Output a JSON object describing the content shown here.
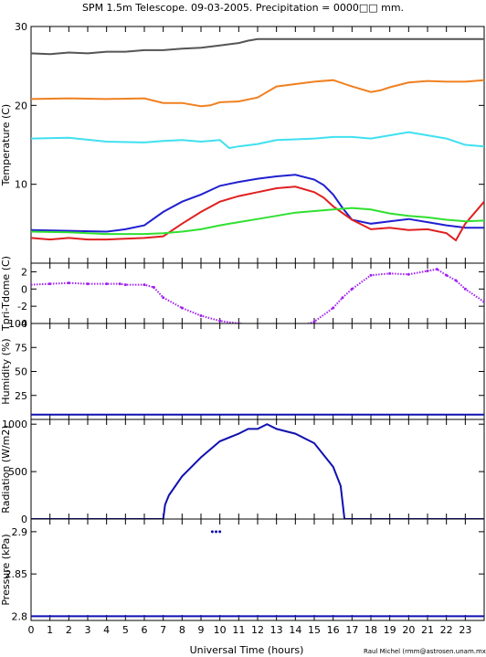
{
  "title": "SPM 1.5m Telescope. 09-03-2005. Precipitation = 0000□□ mm.",
  "xlabel": "Universal Time (hours)",
  "credit": "Raul Michel (rmm@astrosen.unam.mx)",
  "x_ticks": [
    "0",
    "1",
    "2",
    "3",
    "4",
    "5",
    "6",
    "7",
    "8",
    "9",
    "10",
    "11",
    "12",
    "13",
    "14",
    "15",
    "16",
    "17",
    "18",
    "19",
    "20",
    "21",
    "22",
    "23"
  ],
  "chart_data": [
    {
      "type": "line",
      "ylabel": "Temperature (C)",
      "ylim": [
        0,
        30
      ],
      "yticks": [
        10,
        20,
        30
      ],
      "series": [
        {
          "color": "#555555",
          "x": [
            0,
            1,
            2,
            3,
            4,
            5,
            6,
            7,
            8,
            9,
            10,
            11,
            11.5,
            12,
            24
          ],
          "values": [
            26.6,
            26.5,
            26.7,
            26.6,
            26.8,
            26.8,
            27.0,
            27.0,
            27.2,
            27.3,
            27.6,
            27.9,
            28.2,
            28.4,
            28.4
          ]
        },
        {
          "color": "#f08020",
          "x": [
            0,
            2,
            4,
            6,
            7,
            8,
            9,
            9.5,
            10,
            11,
            12,
            13,
            14,
            15,
            16,
            17,
            18,
            18.5,
            19,
            20,
            21,
            22,
            23,
            24
          ],
          "values": [
            20.8,
            20.9,
            20.8,
            20.9,
            20.3,
            20.3,
            19.9,
            20.0,
            20.4,
            20.5,
            21.0,
            22.4,
            22.7,
            23.0,
            23.2,
            22.4,
            21.7,
            21.9,
            22.3,
            22.9,
            23.1,
            23.0,
            23.0,
            23.2
          ]
        },
        {
          "color": "#40e0f0",
          "x": [
            0,
            2,
            4,
            6,
            7,
            8,
            9,
            10,
            10.5,
            11,
            12,
            13,
            14,
            15,
            16,
            17,
            18,
            19,
            20,
            21,
            22,
            23,
            24
          ],
          "values": [
            15.8,
            15.9,
            15.4,
            15.3,
            15.5,
            15.6,
            15.4,
            15.6,
            14.6,
            14.8,
            15.1,
            15.6,
            15.7,
            15.8,
            16.0,
            16.0,
            15.8,
            16.2,
            16.6,
            16.2,
            15.8,
            15.0,
            14.8
          ]
        },
        {
          "color": "#2020d0",
          "x": [
            0,
            2,
            4,
            5,
            6,
            7,
            8,
            9,
            10,
            11,
            12,
            13,
            14,
            15,
            15.5,
            16,
            16.5,
            17,
            18,
            19,
            20,
            21,
            22,
            23,
            24
          ],
          "values": [
            4.2,
            4.1,
            4.0,
            4.3,
            4.8,
            6.5,
            7.8,
            8.7,
            9.8,
            10.3,
            10.7,
            11.0,
            11.2,
            10.6,
            9.9,
            8.7,
            7.0,
            5.5,
            5.0,
            5.3,
            5.6,
            5.2,
            4.8,
            4.5,
            4.5
          ]
        },
        {
          "color": "#e02020",
          "x": [
            0,
            1,
            2,
            3,
            4,
            5,
            6,
            7,
            8,
            9,
            10,
            11,
            12,
            13,
            14,
            15,
            15.5,
            16,
            17,
            18,
            19,
            20,
            21,
            22,
            22.5,
            23,
            24
          ],
          "values": [
            3.2,
            3.0,
            3.2,
            3.0,
            3.0,
            3.1,
            3.2,
            3.4,
            5.0,
            6.5,
            7.8,
            8.5,
            9.0,
            9.5,
            9.7,
            9.0,
            8.3,
            7.2,
            5.5,
            4.3,
            4.5,
            4.2,
            4.3,
            3.8,
            2.9,
            5.0,
            7.8
          ]
        },
        {
          "color": "#30e030",
          "x": [
            0,
            2,
            4,
            6,
            7,
            8,
            9,
            10,
            11,
            12,
            13,
            14,
            15,
            16,
            17,
            18,
            19,
            20,
            21,
            22,
            23,
            24
          ],
          "values": [
            4.0,
            3.9,
            3.7,
            3.7,
            3.8,
            4.0,
            4.3,
            4.8,
            5.2,
            5.6,
            6.0,
            6.4,
            6.6,
            6.8,
            7.0,
            6.8,
            6.3,
            6.0,
            5.8,
            5.5,
            5.3,
            5.4
          ]
        }
      ]
    },
    {
      "type": "scatter",
      "ylabel": "Tpri-Tdome (C)",
      "ylim": [
        -4,
        3
      ],
      "yticks": [
        -4,
        -2,
        0,
        2
      ],
      "series": [
        {
          "color": "#a020f0",
          "x": [
            0,
            1,
            2,
            3,
            4,
            4.7,
            5,
            6,
            6.5,
            7,
            8,
            9,
            10,
            11,
            12,
            13,
            13.5,
            14,
            15,
            16,
            16.5,
            17,
            18,
            19,
            20,
            21,
            21.5,
            22,
            22.5,
            23,
            24
          ],
          "values": [
            0.5,
            0.6,
            0.7,
            0.6,
            0.6,
            0.6,
            0.5,
            0.5,
            0.2,
            -1.0,
            -2.2,
            -3.1,
            -3.7,
            -4.0,
            -4.2,
            -4.3,
            -4.5,
            -4.5,
            -3.8,
            -2.2,
            -1.0,
            0.0,
            1.6,
            1.8,
            1.7,
            2.1,
            2.3,
            1.6,
            1.0,
            0.0,
            -1.5
          ]
        }
      ]
    },
    {
      "type": "line",
      "ylabel": "Humidity (%)",
      "ylim": [
        0,
        100
      ],
      "yticks": [
        25,
        50,
        75,
        100
      ],
      "series": [
        {
          "color": "#1010b0",
          "x": [
            0,
            24
          ],
          "values": [
            5,
            5
          ]
        }
      ]
    },
    {
      "type": "line",
      "ylabel": "Radiation (W/m2)",
      "ylim": [
        0,
        1050
      ],
      "yticks": [
        0,
        500,
        1000
      ],
      "series": [
        {
          "color": "#1010b0",
          "x": [
            0,
            7,
            7.1,
            7.3,
            8,
            9,
            10,
            11,
            11.5,
            12,
            12.5,
            13,
            14,
            15,
            16,
            16.4,
            16.6,
            24
          ],
          "values": [
            0,
            0,
            150,
            250,
            450,
            650,
            820,
            900,
            950,
            950,
            1000,
            950,
            900,
            800,
            550,
            350,
            0,
            0
          ]
        }
      ]
    },
    {
      "type": "line",
      "ylabel": "Pressure (kPa)",
      "ylim": [
        2.795,
        2.915
      ],
      "yticks": [
        2.8,
        2.85,
        2.9
      ],
      "series": [
        {
          "color": "#1010b0",
          "x": [
            0,
            24
          ],
          "values": [
            2.8,
            2.8
          ]
        },
        {
          "color": "#1010b0",
          "x": [
            9.6,
            9.8,
            10.0
          ],
          "values": [
            2.9,
            2.9,
            2.9
          ],
          "points": true
        }
      ]
    }
  ]
}
